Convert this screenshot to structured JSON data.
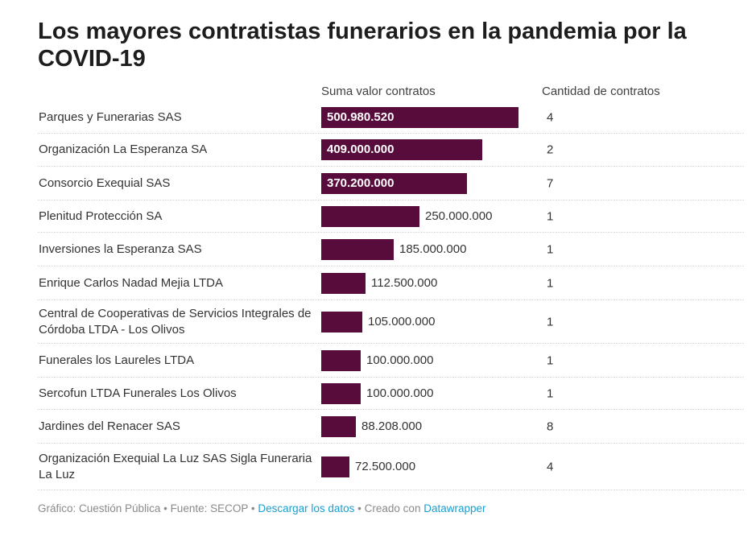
{
  "title": "Los mayores contratistas funerarios en la pandemia por la COVID-19",
  "columns": {
    "value": "Suma valor contratos",
    "count": "Cantidad de contratos"
  },
  "chart_data": {
    "type": "bar",
    "orientation": "horizontal",
    "categories": [
      "Parques y Funerarias SAS",
      "Organización La Esperanza SA",
      "Consorcio Exequial SAS",
      "Plenitud Protección SA",
      "Inversiones la Esperanza SAS",
      "Enrique Carlos Nadad Mejia LTDA",
      "Central de Cooperativas de Servicios Integrales de Córdoba LTDA - Los Olivos",
      "Funerales los Laureles LTDA",
      "Sercofun LTDA Funerales Los Olivos",
      "Jardines del Renacer SAS",
      "Organización Exequial La Luz SAS Sigla Funeraria La Luz"
    ],
    "values": [
      500980520,
      409000000,
      370200000,
      250000000,
      185000000,
      112500000,
      105000000,
      100000000,
      100000000,
      88208000,
      72500000
    ],
    "value_labels": [
      "500.980.520",
      "409.000.000",
      "370.200.000",
      "250.000.000",
      "185.000.000",
      "112.500.000",
      "105.000.000",
      "100.000.000",
      "100.000.000",
      "88.208.000",
      "72.500.000"
    ],
    "counts": [
      "4",
      "2",
      "7",
      "1",
      "1",
      "1",
      "1",
      "1",
      "1",
      "8",
      "4"
    ],
    "xlim": [
      0,
      500980520
    ],
    "bar_color": "#580c3b"
  },
  "footer": {
    "credit": "Gráfico: Cuestión Pública",
    "sep1": " • ",
    "source": "Fuente: SECOP",
    "sep2": " • ",
    "download": "Descargar los datos",
    "sep3": " • ",
    "created": "Creado con ",
    "tool": "Datawrapper"
  }
}
